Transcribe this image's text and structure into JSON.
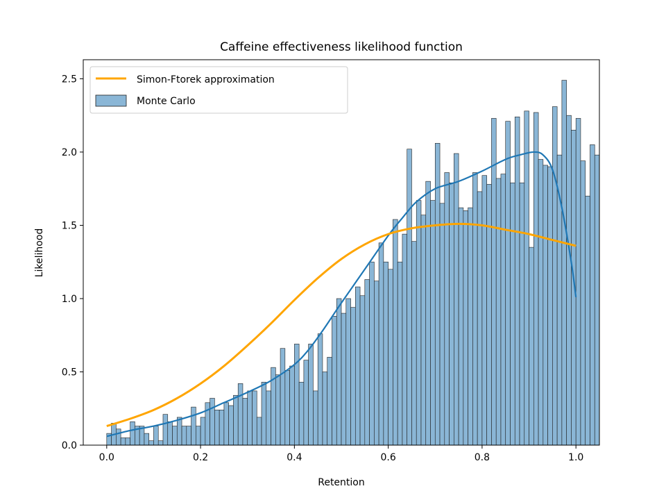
{
  "chart_data": {
    "type": "bar",
    "title": "Caffeine effectiveness likelihood function",
    "xlabel": "Retention",
    "ylabel": "Likelihood",
    "xlim": [
      -0.05,
      1.05
    ],
    "ylim": [
      0,
      2.63
    ],
    "xticks": [
      0.0,
      0.2,
      0.4,
      0.6,
      0.8,
      1.0
    ],
    "xtick_labels": [
      "0.0",
      "0.2",
      "0.4",
      "0.6",
      "0.8",
      "1.0"
    ],
    "yticks": [
      0.0,
      0.5,
      1.0,
      1.5,
      2.0,
      2.5
    ],
    "ytick_labels": [
      "0.0",
      "0.5",
      "1.0",
      "1.5",
      "2.0",
      "2.5"
    ],
    "grid": false,
    "legend_position": "top-left",
    "bin_width": 0.01,
    "colors": {
      "hist_fill": "#8ab6d6",
      "hist_edge": "#1f1f1f",
      "kde": "#1f77b4",
      "approx": "#ffa500"
    },
    "series": [
      {
        "name": "Monte Carlo",
        "kind": "histogram",
        "bin_start": 0.0,
        "values": [
          0.08,
          0.15,
          0.11,
          0.05,
          0.05,
          0.16,
          0.13,
          0.13,
          0.08,
          0.03,
          0.13,
          0.03,
          0.21,
          0.16,
          0.13,
          0.19,
          0.13,
          0.13,
          0.26,
          0.13,
          0.19,
          0.29,
          0.32,
          0.24,
          0.24,
          0.29,
          0.27,
          0.34,
          0.42,
          0.32,
          0.37,
          0.37,
          0.19,
          0.43,
          0.37,
          0.53,
          0.48,
          0.66,
          0.51,
          0.54,
          0.69,
          0.43,
          0.58,
          0.69,
          0.37,
          0.76,
          0.5,
          0.6,
          0.88,
          1.0,
          0.9,
          1.0,
          0.94,
          1.08,
          1.02,
          1.13,
          1.25,
          1.12,
          1.38,
          1.25,
          1.2,
          1.54,
          1.25,
          1.44,
          2.02,
          1.39,
          1.67,
          1.57,
          1.8,
          1.67,
          2.06,
          1.65,
          1.86,
          1.79,
          1.99,
          1.62,
          1.6,
          1.62,
          1.86,
          1.73,
          1.84,
          1.78,
          2.23,
          1.82,
          1.85,
          2.21,
          1.79,
          2.24,
          1.79,
          2.28,
          1.35,
          2.27,
          1.95,
          1.91,
          1.9,
          2.31,
          1.98,
          2.49,
          2.25,
          2.15,
          2.23,
          1.94,
          1.7,
          2.05,
          1.98
        ]
      },
      {
        "name": "",
        "kind": "kde",
        "x": [
          0.0,
          0.05,
          0.1,
          0.15,
          0.2,
          0.25,
          0.3,
          0.35,
          0.4,
          0.43,
          0.46,
          0.5,
          0.55,
          0.6,
          0.63,
          0.66,
          0.7,
          0.75,
          0.8,
          0.85,
          0.88,
          0.91,
          0.93,
          0.95,
          0.97,
          0.99,
          1.0
        ],
        "y": [
          0.06,
          0.1,
          0.13,
          0.17,
          0.22,
          0.29,
          0.36,
          0.44,
          0.55,
          0.65,
          0.78,
          0.97,
          1.2,
          1.43,
          1.55,
          1.66,
          1.75,
          1.8,
          1.87,
          1.95,
          1.98,
          2.0,
          1.98,
          1.88,
          1.62,
          1.25,
          1.01
        ]
      },
      {
        "name": "Simon-Ftorek approximation",
        "kind": "line",
        "x": [
          0.0,
          0.05,
          0.1,
          0.15,
          0.2,
          0.25,
          0.3,
          0.35,
          0.4,
          0.45,
          0.5,
          0.55,
          0.6,
          0.65,
          0.7,
          0.75,
          0.8,
          0.85,
          0.9,
          0.95,
          1.0
        ],
        "y": [
          0.13,
          0.18,
          0.24,
          0.32,
          0.42,
          0.54,
          0.68,
          0.83,
          0.99,
          1.14,
          1.27,
          1.37,
          1.44,
          1.48,
          1.5,
          1.51,
          1.5,
          1.47,
          1.44,
          1.4,
          1.36
        ]
      }
    ]
  }
}
